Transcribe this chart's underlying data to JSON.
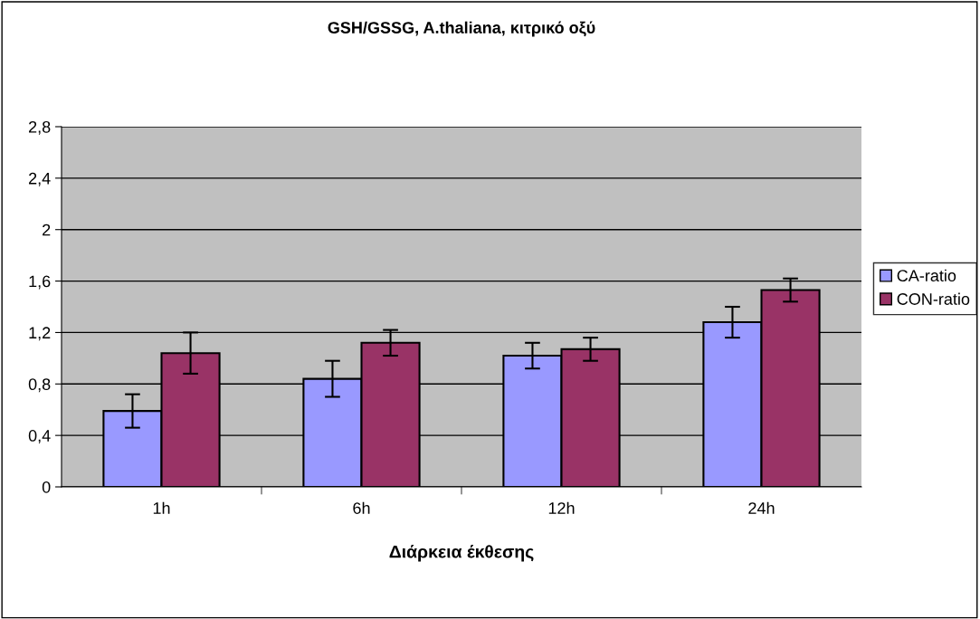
{
  "chart_data": {
    "type": "bar",
    "title": "GSH/GSSG, A.thaliana, κιτρικό οξύ",
    "xlabel": "Διάρκεια έκθεσης",
    "categories": [
      "1h",
      "6h",
      "12h",
      "24h"
    ],
    "series": [
      {
        "name": "CA-ratio",
        "color": "#9999ff",
        "values": [
          0.59,
          0.84,
          1.02,
          1.28
        ],
        "errors": [
          0.13,
          0.14,
          0.1,
          0.12
        ]
      },
      {
        "name": "CON-ratio",
        "color": "#993366",
        "values": [
          1.04,
          1.12,
          1.07,
          1.53
        ],
        "errors": [
          0.16,
          0.1,
          0.09,
          0.09
        ]
      }
    ],
    "ylim": [
      0,
      2.8
    ],
    "yticks": [
      0,
      {
        "value": 0.4,
        "label": "0,4"
      },
      {
        "value": 0.8,
        "label": "0,8"
      },
      {
        "value": 1.2,
        "label": "1,2"
      },
      {
        "value": 1.6,
        "label": "1,6"
      },
      {
        "value": 2,
        "label": "2"
      },
      {
        "value": 2.4,
        "label": "2,4"
      },
      {
        "value": 2.8,
        "label": "2,8"
      }
    ],
    "grid": "y",
    "legend": "right"
  }
}
